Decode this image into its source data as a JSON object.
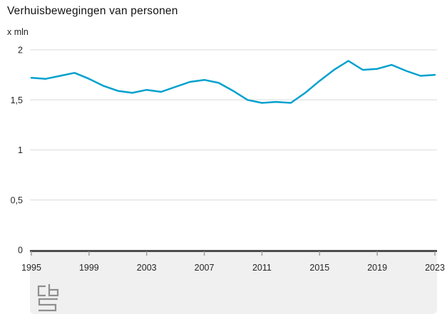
{
  "chart_data": {
    "type": "line",
    "title": "Verhuisbewegingen van personen",
    "unit_label": "x mln",
    "xlabel": "",
    "ylabel": "x mln",
    "grid": true,
    "legend": "none",
    "xlim": [
      1995,
      2023
    ],
    "ylim": [
      0,
      2
    ],
    "x": [
      1995,
      1996,
      1997,
      1998,
      1999,
      2000,
      2001,
      2002,
      2003,
      2004,
      2005,
      2006,
      2007,
      2008,
      2009,
      2010,
      2011,
      2012,
      2013,
      2014,
      2015,
      2016,
      2017,
      2018,
      2019,
      2020,
      2021,
      2022,
      2023
    ],
    "series": [
      {
        "name": "Verhuisbewegingen van personen (x mln)",
        "values": [
          1.72,
          1.71,
          1.74,
          1.77,
          1.71,
          1.64,
          1.59,
          1.57,
          1.6,
          1.58,
          1.63,
          1.68,
          1.7,
          1.67,
          1.59,
          1.5,
          1.47,
          1.48,
          1.47,
          1.57,
          1.69,
          1.8,
          1.89,
          1.8,
          1.81,
          1.85,
          1.79,
          1.74,
          1.75
        ]
      }
    ],
    "x_tick_labels": [
      "1995",
      "1999",
      "2003",
      "2007",
      "2011",
      "2015",
      "2019",
      "2023"
    ],
    "x_tick_years": [
      1995,
      1999,
      2003,
      2007,
      2011,
      2015,
      2019,
      2023
    ],
    "y_ticks": [
      {
        "value": 0,
        "label": "0"
      },
      {
        "value": 0.5,
        "label": "0,5"
      },
      {
        "value": 1,
        "label": "1"
      },
      {
        "value": 1.5,
        "label": "1,5"
      },
      {
        "value": 2,
        "label": "2"
      }
    ],
    "colors": {
      "line": "#00a1cd",
      "grid": "#e6e6e6",
      "axis": "#4d4d4d",
      "tick": "#9e9e9e",
      "band": "#f0f0f0",
      "text": "#262626",
      "logo": "#8f8f8f"
    }
  },
  "footer": {
    "logo_name": "cbs-logo"
  }
}
